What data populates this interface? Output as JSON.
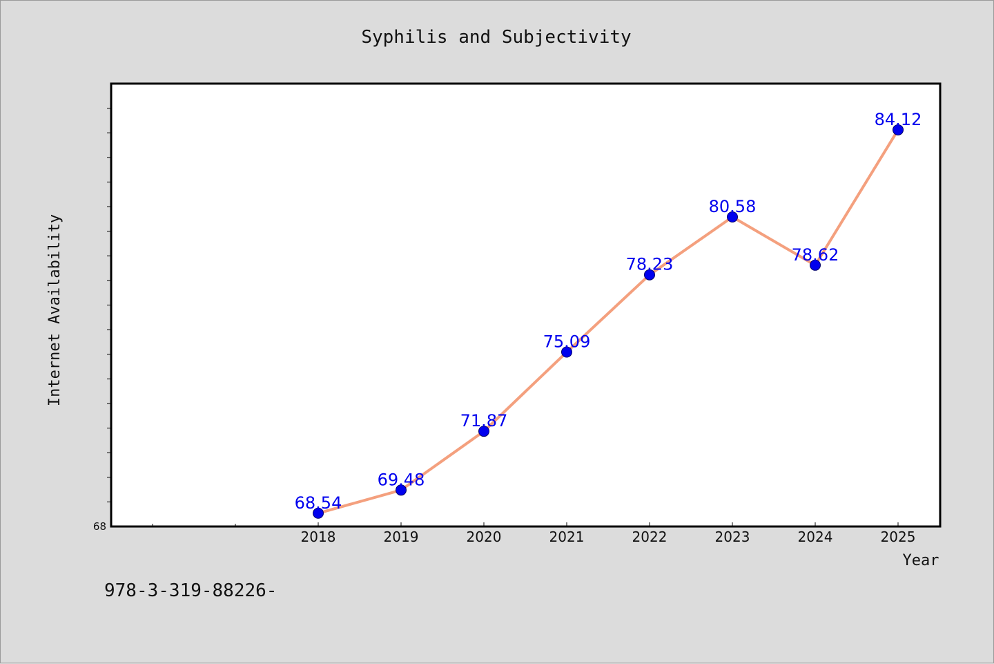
{
  "chart_data": {
    "type": "line",
    "title": "Syphilis and Subjectivity",
    "xlabel": "Year",
    "ylabel": "Internet Availability",
    "categories": [
      "2018",
      "2019",
      "2020",
      "2021",
      "2022",
      "2023",
      "2024",
      "2025"
    ],
    "series": [
      {
        "values": [
          68.54,
          69.48,
          71.87,
          75.09,
          78.23,
          80.58,
          78.62,
          84.12
        ],
        "labels": [
          "68.54",
          "69.48",
          "71.87",
          "75.09",
          "78.23",
          "80.58",
          "78.62",
          "84.12"
        ],
        "line_color": "#f4a07e",
        "marker_color": "#0000ee",
        "label_color": "#0000ee"
      }
    ],
    "ylim": [
      68,
      86
    ],
    "y_tick_labels": [
      "68"
    ],
    "grid": false,
    "legend": "none"
  },
  "footnote": "978-3-319-88226-"
}
